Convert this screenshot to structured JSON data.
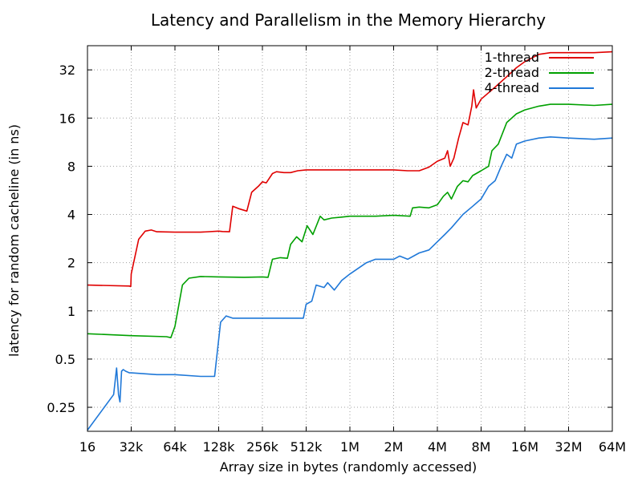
{
  "chart_data": {
    "type": "line",
    "title": "Latency and Parallelism in the Memory Hierarchy",
    "xlabel": "Array size in bytes (randomly accessed)",
    "ylabel": "latency for random cacheline (in ns)",
    "x_scale": "log2",
    "y_scale": "log2",
    "x_ticks": [
      "16",
      "32k",
      "64k",
      "128k",
      "256k",
      "512k",
      "1M",
      "2M",
      "4M",
      "8M",
      "16M",
      "32M",
      "64M"
    ],
    "y_ticks": [
      "0.25",
      "0.5",
      "1",
      "2",
      "4",
      "8",
      "16",
      "32"
    ],
    "ylim": [
      0.177,
      45.3
    ],
    "grid": true,
    "legend_position": "top-right",
    "series": [
      {
        "name": "1-thread",
        "color": "#e00000",
        "points": [
          [
            "16",
            1.45
          ],
          [
            "24k",
            1.43
          ],
          [
            "28k",
            1.42
          ],
          [
            "30k",
            1.43
          ],
          [
            "32k",
            1.7
          ],
          [
            "36k",
            2.8
          ],
          [
            "40k",
            3.15
          ],
          [
            "44k",
            3.2
          ],
          [
            "48k",
            3.12
          ],
          [
            "64k",
            3.1
          ],
          [
            "96k",
            3.1
          ],
          [
            "128k",
            3.15
          ],
          [
            "136k",
            3.13
          ],
          [
            "152k",
            3.12
          ],
          [
            "160k",
            4.5
          ],
          [
            "176k",
            4.35
          ],
          [
            "200k",
            4.2
          ],
          [
            "216k",
            5.5
          ],
          [
            "240k",
            6.0
          ],
          [
            "256k",
            6.4
          ],
          [
            "272k",
            6.3
          ],
          [
            "300k",
            7.2
          ],
          [
            "320k",
            7.4
          ],
          [
            "360k",
            7.3
          ],
          [
            "400k",
            7.3
          ],
          [
            "448k",
            7.5
          ],
          [
            "512k",
            7.6
          ],
          [
            "1M",
            7.6
          ],
          [
            "2M",
            7.6
          ],
          [
            "2.5M",
            7.5
          ],
          [
            "3M",
            7.5
          ],
          [
            "3.5M",
            7.9
          ],
          [
            "4M",
            8.6
          ],
          [
            "4.5M",
            9.0
          ],
          [
            "4.7M",
            10.0
          ],
          [
            "4.9M",
            8.0
          ],
          [
            "5.2M",
            9.0
          ],
          [
            "5.6M",
            12.0
          ],
          [
            "6M",
            15.0
          ],
          [
            "6.5M",
            14.5
          ],
          [
            "6.9M",
            19.0
          ],
          [
            "7.1M",
            24.0
          ],
          [
            "7.4M",
            18.5
          ],
          [
            "8M",
            21.0
          ],
          [
            "10M",
            25.0
          ],
          [
            "12M",
            29.0
          ],
          [
            "14M",
            33.0
          ],
          [
            "16M",
            36.0
          ],
          [
            "20M",
            40.0
          ],
          [
            "24M",
            41.0
          ],
          [
            "32M",
            41.0
          ],
          [
            "48M",
            41.0
          ],
          [
            "64M",
            41.5
          ]
        ]
      },
      {
        "name": "2-thread",
        "color": "#00a000",
        "points": [
          [
            "16",
            0.72
          ],
          [
            "32k",
            0.7
          ],
          [
            "56k",
            0.69
          ],
          [
            "60k",
            0.68
          ],
          [
            "64k",
            0.8
          ],
          [
            "72k",
            1.45
          ],
          [
            "80k",
            1.6
          ],
          [
            "96k",
            1.64
          ],
          [
            "128k",
            1.63
          ],
          [
            "192k",
            1.62
          ],
          [
            "256k",
            1.63
          ],
          [
            "280k",
            1.62
          ],
          [
            "300k",
            2.1
          ],
          [
            "340k",
            2.15
          ],
          [
            "380k",
            2.13
          ],
          [
            "400k",
            2.6
          ],
          [
            "440k",
            2.9
          ],
          [
            "480k",
            2.7
          ],
          [
            "520k",
            3.4
          ],
          [
            "570k",
            3.0
          ],
          [
            "640k",
            3.9
          ],
          [
            "680k",
            3.7
          ],
          [
            "768k",
            3.8
          ],
          [
            "900k",
            3.85
          ],
          [
            "1M",
            3.9
          ],
          [
            "1.5M",
            3.9
          ],
          [
            "2M",
            3.95
          ],
          [
            "2.6M",
            3.9
          ],
          [
            "2.7M",
            4.4
          ],
          [
            "3M",
            4.45
          ],
          [
            "3.5M",
            4.4
          ],
          [
            "4M",
            4.6
          ],
          [
            "4.4M",
            5.2
          ],
          [
            "4.7M",
            5.5
          ],
          [
            "5M",
            5.0
          ],
          [
            "5.5M",
            6.0
          ],
          [
            "6M",
            6.5
          ],
          [
            "6.5M",
            6.4
          ],
          [
            "7M",
            7.0
          ],
          [
            "8M",
            7.5
          ],
          [
            "9M",
            8.0
          ],
          [
            "9.5M",
            10.0
          ],
          [
            "10.5M",
            11.0
          ],
          [
            "12M",
            15.0
          ],
          [
            "14M",
            17.0
          ],
          [
            "16M",
            18.0
          ],
          [
            "20M",
            19.0
          ],
          [
            "24M",
            19.5
          ],
          [
            "32M",
            19.5
          ],
          [
            "48M",
            19.2
          ],
          [
            "64M",
            19.5
          ]
        ]
      },
      {
        "name": "4-thread",
        "color": "#1f78d8",
        "points": [
          [
            "16",
            0.18
          ],
          [
            "1.5k",
            0.3
          ],
          [
            "2.5k",
            0.44
          ],
          [
            "3.5k",
            0.3
          ],
          [
            "4.5k",
            0.27
          ],
          [
            "6k",
            0.42
          ],
          [
            "8k",
            0.43
          ],
          [
            "12k",
            0.42
          ],
          [
            "24k",
            0.41
          ],
          [
            "32k",
            0.41
          ],
          [
            "48k",
            0.4
          ],
          [
            "64k",
            0.4
          ],
          [
            "96k",
            0.39
          ],
          [
            "120k",
            0.39
          ],
          [
            "132k",
            0.85
          ],
          [
            "144k",
            0.93
          ],
          [
            "160k",
            0.9
          ],
          [
            "256k",
            0.9
          ],
          [
            "448k",
            0.9
          ],
          [
            "490k",
            0.9
          ],
          [
            "512k",
            1.1
          ],
          [
            "560k",
            1.15
          ],
          [
            "600k",
            1.45
          ],
          [
            "680k",
            1.4
          ],
          [
            "720k",
            1.5
          ],
          [
            "800k",
            1.35
          ],
          [
            "900k",
            1.55
          ],
          [
            "1M",
            1.7
          ],
          [
            "1.3M",
            2.0
          ],
          [
            "1.5M",
            2.1
          ],
          [
            "2M",
            2.1
          ],
          [
            "2.2M",
            2.2
          ],
          [
            "2.5M",
            2.1
          ],
          [
            "3M",
            2.3
          ],
          [
            "3.5M",
            2.4
          ],
          [
            "4M",
            2.7
          ],
          [
            "4.5M",
            3.0
          ],
          [
            "5M",
            3.3
          ],
          [
            "6M",
            4.0
          ],
          [
            "7M",
            4.5
          ],
          [
            "8M",
            5.0
          ],
          [
            "9M",
            6.0
          ],
          [
            "10M",
            6.5
          ],
          [
            "11M",
            8.0
          ],
          [
            "12M",
            9.5
          ],
          [
            "13M",
            9.0
          ],
          [
            "14M",
            11.0
          ],
          [
            "16M",
            11.5
          ],
          [
            "20M",
            12.0
          ],
          [
            "24M",
            12.2
          ],
          [
            "32M",
            12.0
          ],
          [
            "48M",
            11.8
          ],
          [
            "64M",
            12.0
          ]
        ]
      }
    ]
  }
}
